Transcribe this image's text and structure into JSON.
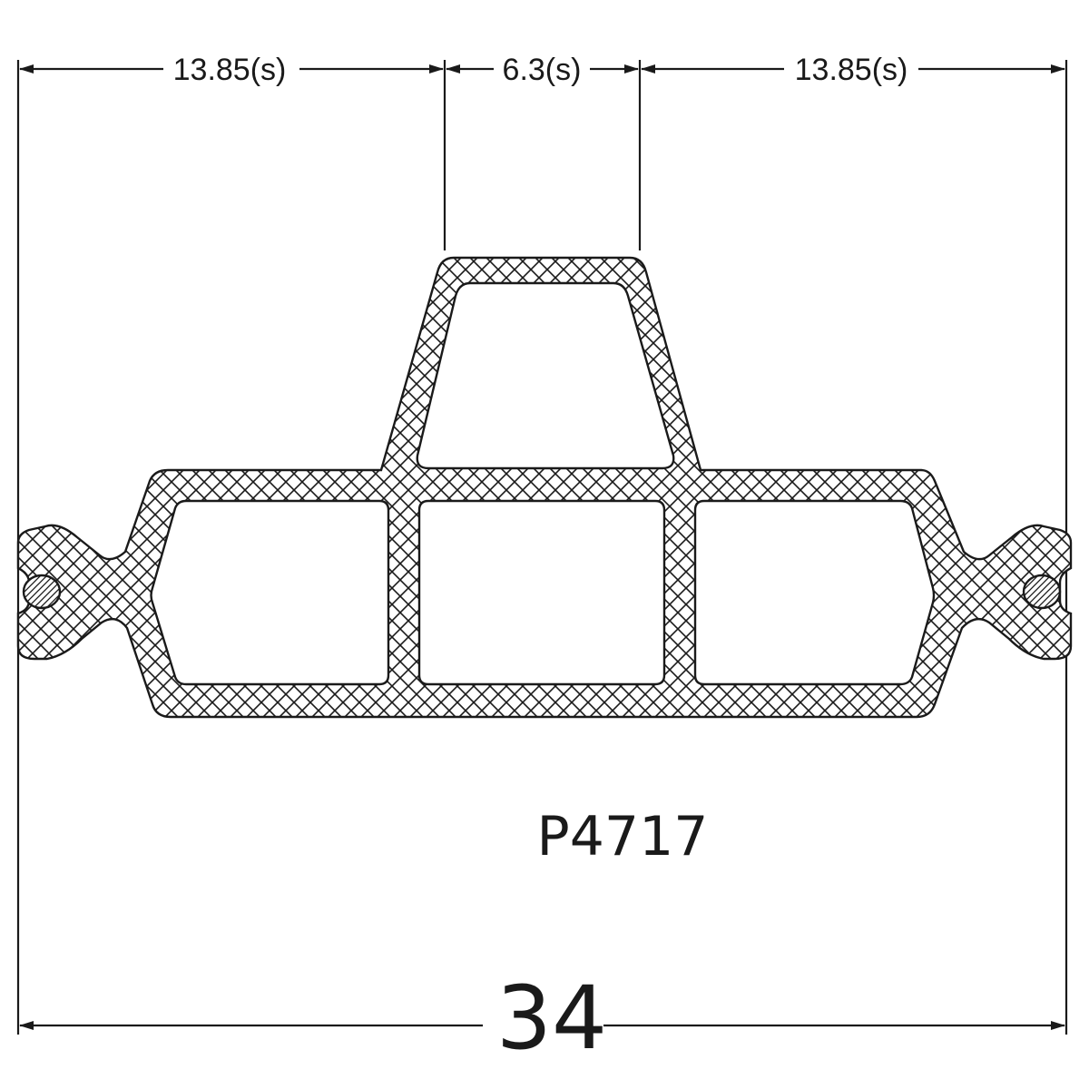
{
  "drawing": {
    "part_number": "P4717",
    "overall_width": "34",
    "dimensions": {
      "left_span": "13.85(s)",
      "center_span": "6.3(s)",
      "right_span": "13.85(s)"
    },
    "colors": {
      "ink": "#1a1a1a",
      "background": "#ffffff"
    }
  }
}
